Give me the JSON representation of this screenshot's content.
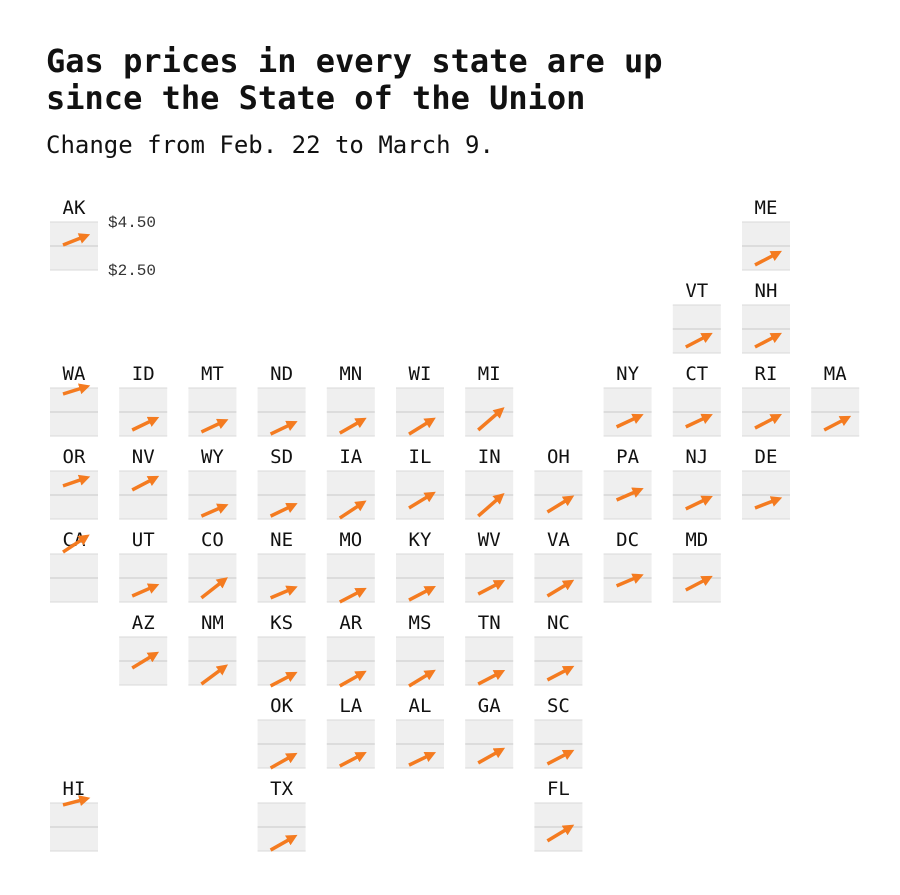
{
  "chart_data": {
    "type": "tile-arrow-map",
    "title": [
      "Gas prices in every state are up",
      "since the State of the Union"
    ],
    "subtitle": "Change from Feb. 22 to March 9.",
    "color": "#f47b20",
    "ylim": [
      2.5,
      4.5
    ],
    "yticks": [
      {
        "value": 4.5,
        "label": "$4.50"
      },
      {
        "value": 2.5,
        "label": "$2.50"
      }
    ],
    "categories": [
      "AK",
      "ME",
      "VT",
      "NH",
      "WA",
      "ID",
      "MT",
      "ND",
      "MN",
      "WI",
      "MI",
      "NY",
      "CT",
      "RI",
      "MA",
      "OR",
      "NV",
      "WY",
      "SD",
      "IA",
      "IL",
      "IN",
      "OH",
      "PA",
      "NJ",
      "DE",
      "CA",
      "UT",
      "CO",
      "NE",
      "MO",
      "KY",
      "WV",
      "VA",
      "DC",
      "MD",
      "AZ",
      "NM",
      "KS",
      "AR",
      "MS",
      "TN",
      "NC",
      "OK",
      "LA",
      "AL",
      "GA",
      "SC",
      "HI",
      "TX",
      "FL"
    ],
    "values": [
      [
        3.54,
        3.92
      ],
      [
        2.71,
        3.21
      ],
      [
        2.75,
        3.25
      ],
      [
        2.75,
        3.25
      ],
      [
        4.25,
        4.55
      ],
      [
        2.75,
        3.21
      ],
      [
        2.67,
        3.12
      ],
      [
        2.58,
        3.04
      ],
      [
        2.62,
        3.17
      ],
      [
        2.58,
        3.17
      ],
      [
        2.75,
        3.58
      ],
      [
        2.88,
        3.33
      ],
      [
        2.88,
        3.33
      ],
      [
        2.83,
        3.33
      ],
      [
        2.75,
        3.25
      ],
      [
        3.88,
        4.21
      ],
      [
        3.71,
        4.21
      ],
      [
        2.62,
        3.04
      ],
      [
        2.62,
        3.08
      ],
      [
        2.54,
        3.17
      ],
      [
        2.96,
        3.54
      ],
      [
        2.62,
        3.46
      ],
      [
        2.79,
        3.38
      ],
      [
        3.29,
        3.71
      ],
      [
        2.92,
        3.38
      ],
      [
        2.96,
        3.33
      ],
      [
        4.58,
        5.21
      ],
      [
        2.75,
        3.17
      ],
      [
        2.67,
        3.42
      ],
      [
        2.67,
        3.08
      ],
      [
        2.5,
        3.0
      ],
      [
        2.58,
        3.08
      ],
      [
        2.83,
        3.33
      ],
      [
        2.75,
        3.33
      ],
      [
        3.17,
        3.58
      ],
      [
        3.0,
        3.5
      ],
      [
        3.21,
        3.79
      ],
      [
        2.54,
        3.25
      ],
      [
        2.46,
        2.96
      ],
      [
        2.46,
        3.0
      ],
      [
        2.46,
        3.04
      ],
      [
        2.54,
        3.04
      ],
      [
        2.71,
        3.21
      ],
      [
        2.5,
        3.04
      ],
      [
        2.58,
        3.08
      ],
      [
        2.62,
        3.08
      ],
      [
        2.71,
        3.25
      ],
      [
        2.67,
        3.17
      ],
      [
        4.42,
        4.67
      ],
      [
        2.54,
        3.08
      ],
      [
        2.92,
        3.5
      ]
    ]
  }
}
